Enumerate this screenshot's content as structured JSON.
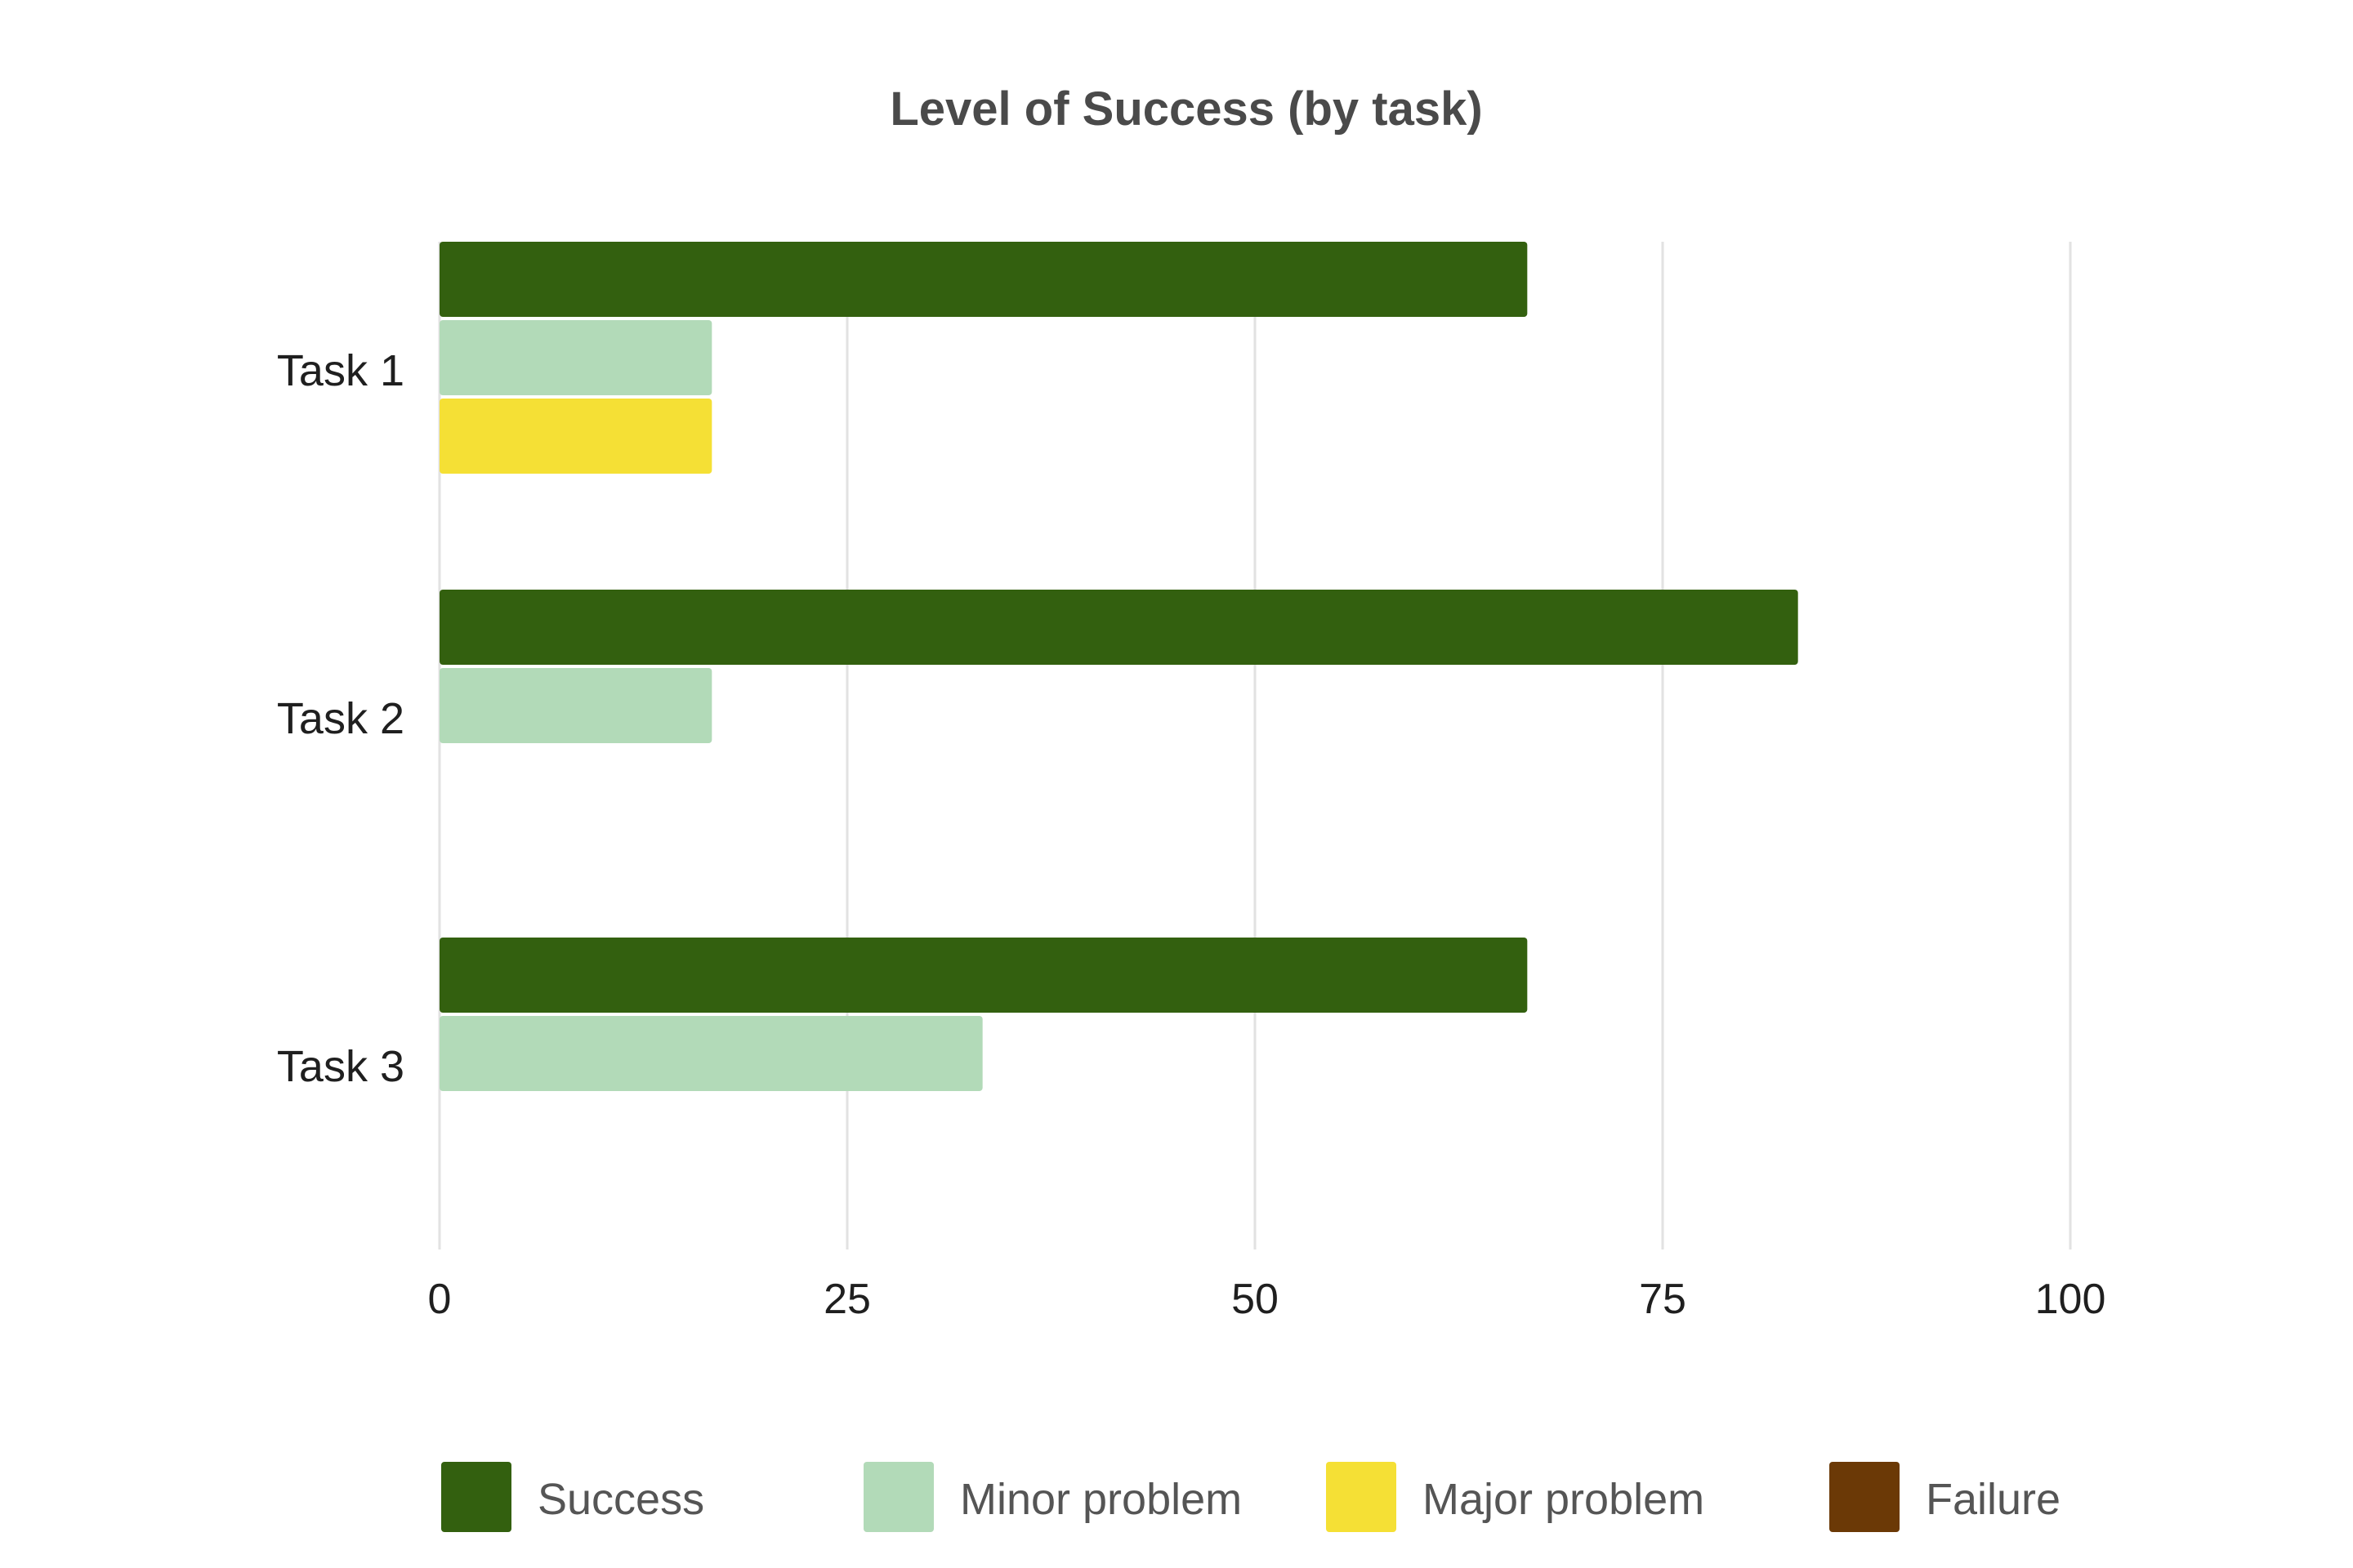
{
  "chart_data": {
    "type": "bar",
    "orientation": "horizontal",
    "title": "Level of Success (by task)",
    "xlabel": "",
    "ylabel": "",
    "categories": [
      "Task 1",
      "Task 2",
      "Task 3"
    ],
    "series": [
      {
        "name": "Success",
        "color": "#33600f",
        "values": [
          66.7,
          83.3,
          66.7
        ]
      },
      {
        "name": "Minor problem",
        "color": "#b2dab8",
        "values": [
          16.7,
          16.7,
          33.3
        ]
      },
      {
        "name": "Major problem",
        "color": "#f5e035",
        "values": [
          16.7,
          0,
          0
        ]
      },
      {
        "name": "Failure",
        "color": "#6b3906",
        "values": [
          0,
          0,
          0
        ]
      }
    ],
    "xlim": [
      0,
      100
    ],
    "xticks": [
      0,
      25,
      50,
      75,
      100
    ],
    "xtick_labels": [
      "0",
      "25",
      "50",
      "75",
      "100"
    ],
    "grid": true,
    "legend_position": "bottom"
  }
}
